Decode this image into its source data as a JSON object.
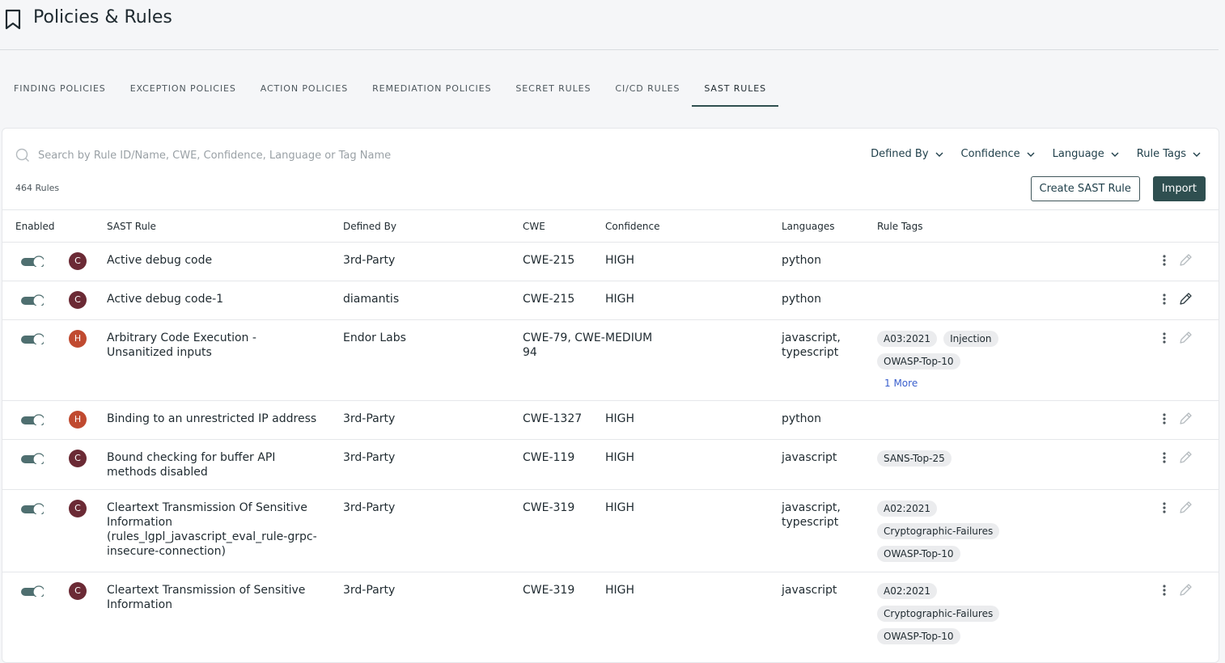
{
  "header": {
    "title": "Policies & Rules"
  },
  "tabs": {
    "items": [
      "FINDING POLICIES",
      "EXCEPTION POLICIES",
      "ACTION POLICIES",
      "REMEDIATION POLICIES",
      "SECRET RULES",
      "CI/CD RULES",
      "SAST RULES"
    ],
    "active": 6
  },
  "toolbar": {
    "search_placeholder": "Search by Rule ID/Name, CWE, Confidence, Language or Tag Name",
    "filters": [
      "Defined By",
      "Confidence",
      "Language",
      "Rule Tags"
    ],
    "count": "464 Rules",
    "create_button": "Create SAST Rule",
    "import_button": "Import"
  },
  "table": {
    "columns": [
      "Enabled",
      "SAST Rule",
      "Defined By",
      "CWE",
      "Confidence",
      "Languages",
      "Rule Tags"
    ],
    "rows": [
      {
        "enabled": true,
        "initial": "C",
        "badge_color": "#6b2a35",
        "name": "Active debug code",
        "defined_by": "3rd-Party",
        "cwe": "CWE-215",
        "confidence": "HIGH",
        "languages": "python",
        "tags": []
      },
      {
        "enabled": true,
        "initial": "C",
        "badge_color": "#6b2a35",
        "name": "Active debug code-1",
        "defined_by": "diamantis",
        "cwe": "CWE-215",
        "confidence": "HIGH",
        "languages": "python",
        "tags": []
      },
      {
        "enabled": true,
        "initial": "H",
        "badge_color": "#c04a30",
        "name": "Arbitrary Code Execution - Unsanitized inputs",
        "defined_by": "Endor Labs",
        "cwe": "CWE-79, CWE-94",
        "confidence": "MEDIUM",
        "languages": "javascript, typescript",
        "tags": [
          "A03:2021",
          "Injection",
          "OWASP-Top-10"
        ],
        "more": "1 More"
      },
      {
        "enabled": true,
        "initial": "H",
        "badge_color": "#c04a30",
        "name": "Binding to an unrestricted IP address",
        "defined_by": "3rd-Party",
        "cwe": "CWE-1327",
        "confidence": "HIGH",
        "languages": "python",
        "tags": []
      },
      {
        "enabled": true,
        "initial": "C",
        "badge_color": "#6b2a35",
        "name": "Bound checking for buffer API methods disabled",
        "defined_by": "3rd-Party",
        "cwe": "CWE-119",
        "confidence": "HIGH",
        "languages": "javascript",
        "tags": [
          "SANS-Top-25"
        ]
      },
      {
        "enabled": true,
        "initial": "C",
        "badge_color": "#6b2a35",
        "name": "Cleartext Transmission Of Sensitive Information (rules_lgpl_javascript_eval_rule-grpc-insecure-connection)",
        "defined_by": "3rd-Party",
        "cwe": "CWE-319",
        "confidence": "HIGH",
        "languages": "javascript, typescript",
        "tags": [
          "A02:2021",
          "Cryptographic-Failures",
          "OWASP-Top-10"
        ]
      },
      {
        "enabled": true,
        "initial": "C",
        "badge_color": "#6b2a35",
        "name": "Cleartext Transmission of Sensitive Information",
        "defined_by": "3rd-Party",
        "cwe": "CWE-319",
        "confidence": "HIGH",
        "languages": "javascript",
        "tags": [
          "A02:2021",
          "Cryptographic-Failures",
          "OWASP-Top-10"
        ]
      }
    ]
  }
}
